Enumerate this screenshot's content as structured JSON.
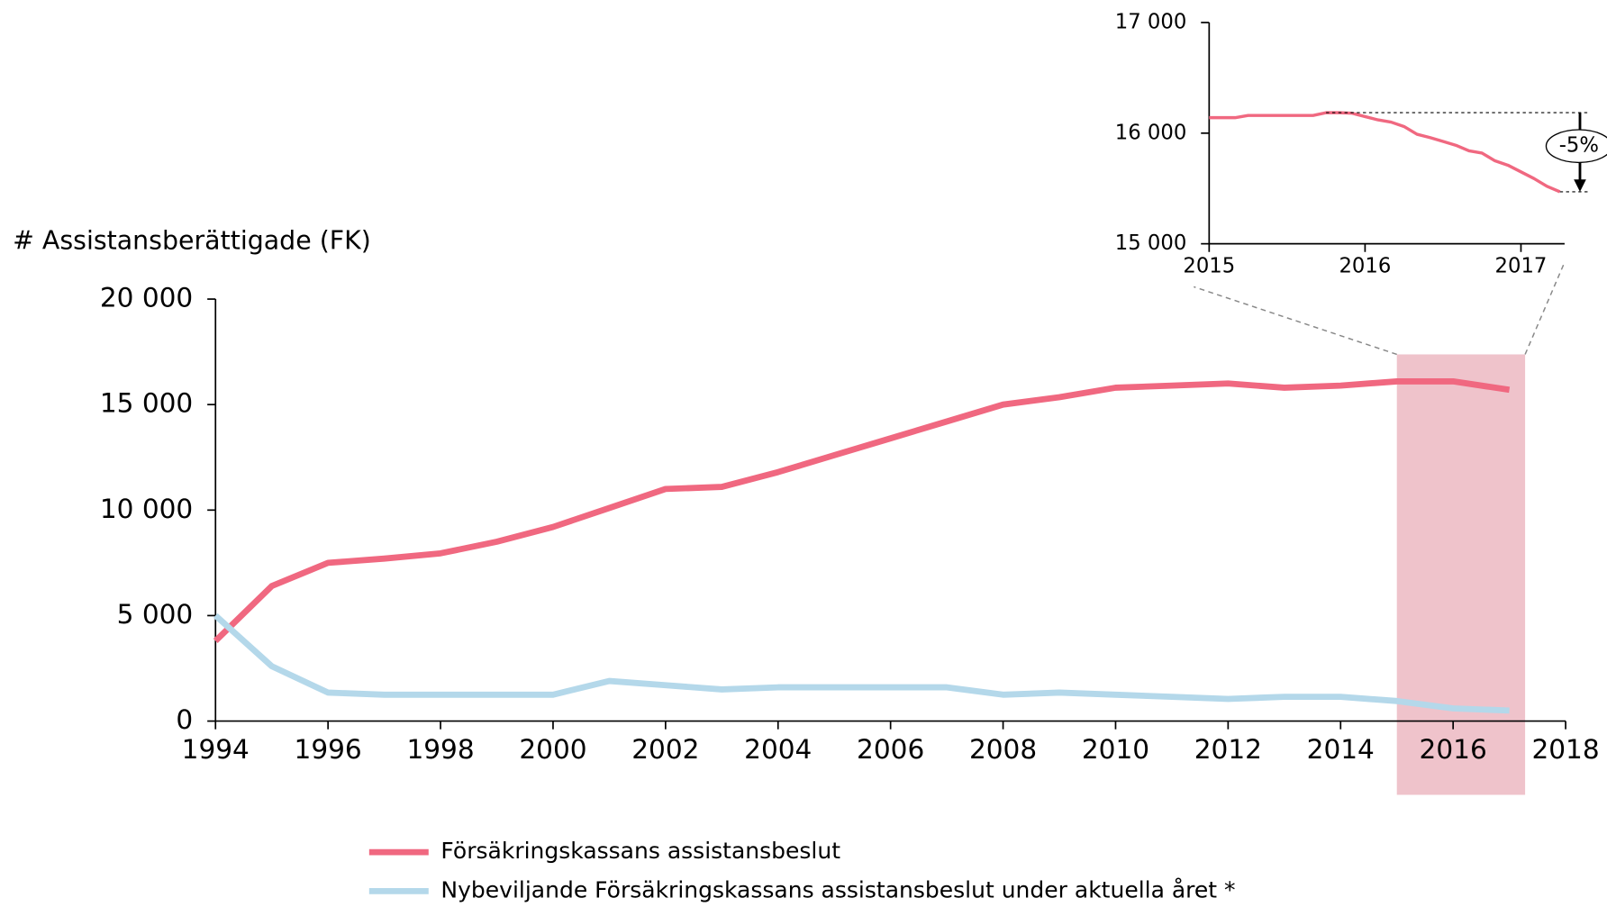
{
  "chart_data": [
    {
      "type": "line",
      "y_label": "# Assistansberättigade (FK)",
      "x": [
        1994,
        1995,
        1996,
        1997,
        1998,
        1999,
        2000,
        2001,
        2002,
        2003,
        2004,
        2005,
        2006,
        2007,
        2008,
        2009,
        2010,
        2011,
        2012,
        2013,
        2014,
        2015,
        2016,
        2017
      ],
      "series": [
        {
          "name": "Försäkringskassans assistansbeslut",
          "color": "#f06880",
          "values": [
            3800,
            6400,
            7500,
            7700,
            7950,
            8500,
            9200,
            10100,
            11000,
            11100,
            11800,
            12600,
            13400,
            14200,
            15000,
            15350,
            15800,
            15900,
            16000,
            15800,
            15900,
            16100,
            16100,
            15700
          ]
        },
        {
          "name": "Nybeviljande Försäkringskassans assistansbeslut under aktuella året *",
          "color": "#b4d8ea",
          "values": [
            5000,
            2600,
            1350,
            1250,
            1250,
            1250,
            1250,
            1900,
            1700,
            1500,
            1600,
            1600,
            1600,
            1600,
            1250,
            1350,
            1250,
            1150,
            1050,
            1150,
            1150,
            950,
            600,
            500
          ]
        }
      ],
      "xlim": [
        1994,
        2018
      ],
      "xticks": [
        1994,
        1996,
        1998,
        2000,
        2002,
        2004,
        2006,
        2008,
        2010,
        2012,
        2014,
        2016,
        2018
      ],
      "ylim": [
        0,
        20000
      ],
      "yticks": [
        0,
        {
          "value": 5000,
          "label": "5 000"
        },
        {
          "value": 10000,
          "label": "10 000"
        },
        {
          "value": 15000,
          "label": "15 000"
        },
        {
          "value": 20000,
          "label": "20 000"
        }
      ],
      "legend": "bottom"
    },
    {
      "type": "line",
      "x": [
        2015,
        2015.0833,
        2015.1667,
        2015.25,
        2015.3333,
        2015.4167,
        2015.5,
        2015.5833,
        2015.6667,
        2015.75,
        2015.8333,
        2015.9167,
        2016,
        2016.0833,
        2016.1667,
        2016.25,
        2016.3333,
        2016.4167,
        2016.5,
        2016.5833,
        2016.6667,
        2016.75,
        2016.8333,
        2016.9167,
        2017,
        2017.0833,
        2017.1667,
        2017.25
      ],
      "series": [
        {
          "color": "#f06880",
          "values": [
            16140,
            16140,
            16140,
            16160,
            16160,
            16160,
            16160,
            16160,
            16160,
            16185,
            16185,
            16180,
            16150,
            16120,
            16100,
            16060,
            15990,
            15960,
            15925,
            15890,
            15840,
            15820,
            15750,
            15710,
            15650,
            15590,
            15520,
            15470
          ]
        }
      ],
      "xlim": [
        2015,
        2017.28
      ],
      "xticks": [
        2015,
        2016,
        2017
      ],
      "ylim": [
        15000,
        17000
      ],
      "yticks": [
        {
          "value": 15000,
          "label": "15 000"
        },
        {
          "value": 16000,
          "label": "16 000"
        },
        {
          "value": 17000,
          "label": "17 000"
        }
      ],
      "annotation": "-5%"
    }
  ]
}
